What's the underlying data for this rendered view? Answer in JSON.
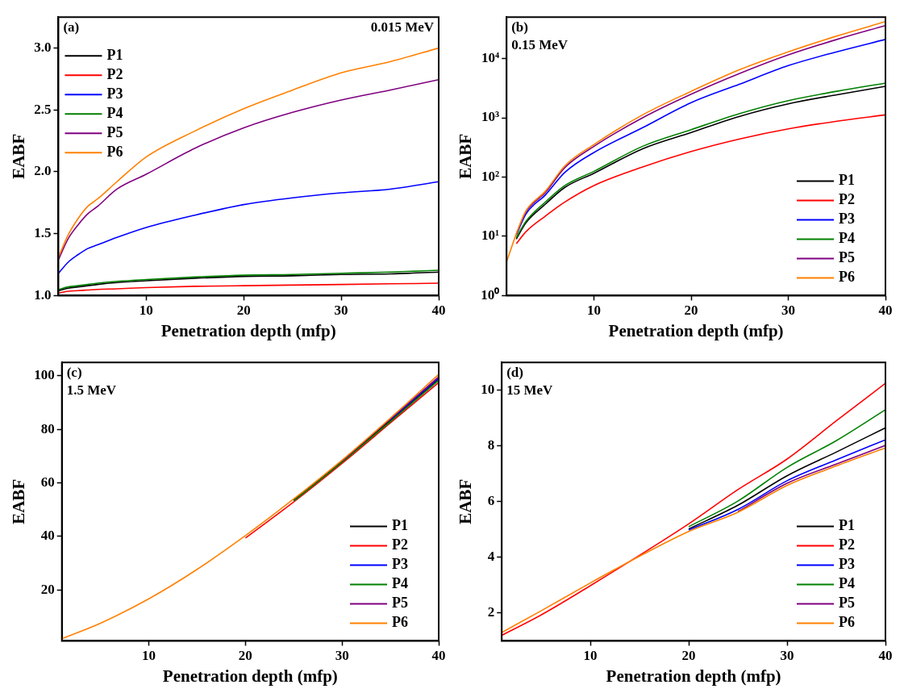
{
  "chart_data": [
    {
      "type": "line",
      "title": "(a)",
      "subtitle": "0.015 MeV",
      "xlabel": "Penetration depth (mfp)",
      "ylabel": "EABF",
      "x": [
        1,
        2,
        3,
        4,
        5,
        7,
        10,
        15,
        20,
        25,
        30,
        35,
        40
      ],
      "xlim": [
        1,
        40
      ],
      "xticks": [
        10,
        20,
        30,
        40
      ],
      "ylim": [
        1,
        3.25
      ],
      "yticks": [
        {
          "value": 1,
          "label": "1.0"
        },
        {
          "value": 1.5,
          "label": "1.5"
        },
        {
          "value": 2,
          "label": "2.0"
        },
        {
          "value": 2.5,
          "label": "2.5"
        },
        {
          "value": 3,
          "label": "3.0"
        }
      ],
      "grid": false,
      "legend": "top left",
      "marker": "none",
      "line_style": "solid",
      "series": [
        {
          "name": "P1",
          "color": "#000000",
          "values": [
            1.04,
            1.06,
            1.07,
            1.08,
            1.09,
            1.105,
            1.12,
            1.14,
            1.155,
            1.16,
            1.17,
            1.175,
            1.19
          ]
        },
        {
          "name": "P2",
          "color": "#ff0000",
          "values": [
            1.02,
            1.035,
            1.04,
            1.045,
            1.05,
            1.055,
            1.065,
            1.075,
            1.08,
            1.085,
            1.09,
            1.095,
            1.1
          ]
        },
        {
          "name": "P3",
          "color": "#0000ff",
          "values": [
            1.18,
            1.27,
            1.33,
            1.38,
            1.41,
            1.47,
            1.55,
            1.65,
            1.735,
            1.79,
            1.83,
            1.86,
            1.92
          ]
        },
        {
          "name": "P4",
          "color": "#008000",
          "values": [
            1.05,
            1.07,
            1.08,
            1.09,
            1.1,
            1.115,
            1.13,
            1.15,
            1.165,
            1.17,
            1.18,
            1.19,
            1.205
          ]
        },
        {
          "name": "P5",
          "color": "#800080",
          "values": [
            1.29,
            1.46,
            1.57,
            1.66,
            1.72,
            1.86,
            1.98,
            2.19,
            2.355,
            2.48,
            2.58,
            2.66,
            2.745
          ]
        },
        {
          "name": "P6",
          "color": "#ff8000",
          "values": [
            1.31,
            1.49,
            1.62,
            1.72,
            1.78,
            1.92,
            2.12,
            2.33,
            2.51,
            2.66,
            2.8,
            2.89,
            3.0
          ]
        }
      ]
    },
    {
      "type": "line",
      "title": "(b)",
      "subtitle": "0.15 MeV",
      "xlabel": "Penetration depth (mfp)",
      "ylabel": "EABF",
      "log": "y",
      "x": [
        1,
        2,
        3,
        5,
        7,
        10,
        15,
        20,
        25,
        30,
        35,
        40
      ],
      "xlim": [
        1,
        40
      ],
      "xticks": [
        10,
        20,
        30,
        40
      ],
      "ylim": [
        1,
        50000
      ],
      "yticks": [
        {
          "value": 1,
          "label": "10⁰"
        },
        {
          "value": 10,
          "label": "10¹"
        },
        {
          "value": 100,
          "label": "10²"
        },
        {
          "value": 1000,
          "label": "10³"
        },
        {
          "value": 10000,
          "label": "10⁴"
        }
      ],
      "grid": false,
      "legend": "bottom right",
      "marker": "none",
      "line_style": "solid",
      "series": [
        {
          "name": "P1",
          "color": "#000000",
          "values": [
            null,
            9,
            17,
            35,
            67,
            116,
            300,
            565,
            1060,
            1720,
            2450,
            3400
          ]
        },
        {
          "name": "P2",
          "color": "#ff0000",
          "values": [
            null,
            7.5,
            12,
            22,
            38,
            72,
            148,
            270,
            440,
            650,
            875,
            1120
          ]
        },
        {
          "name": "P3",
          "color": "#0000ff",
          "values": [
            null,
            10.5,
            24,
            50,
            120,
            260,
            680,
            1800,
            3700,
            7600,
            13000,
            21000
          ]
        },
        {
          "name": "P4",
          "color": "#008000",
          "values": [
            null,
            9.5,
            18,
            38,
            72,
            125,
            330,
            630,
            1180,
            1950,
            2800,
            3850
          ]
        },
        {
          "name": "P5",
          "color": "#800080",
          "values": [
            null,
            11,
            26,
            55,
            145,
            330,
            1000,
            2500,
            5600,
            11500,
            21000,
            36000
          ]
        },
        {
          "name": "P6",
          "color": "#ff8000",
          "values": [
            3.7,
            11,
            27,
            58,
            155,
            355,
            1120,
            2800,
            6500,
            13000,
            24000,
            42000
          ]
        }
      ]
    },
    {
      "type": "line",
      "title": "(c)",
      "subtitle": "1.5 MeV",
      "xlabel": "Penetration depth (mfp)",
      "ylabel": "EABF",
      "x": [
        1,
        5,
        10,
        15,
        20,
        25,
        30,
        35,
        40
      ],
      "xlim": [
        1,
        40
      ],
      "xticks": [
        10,
        20,
        30,
        40
      ],
      "ylim": [
        1,
        105
      ],
      "yticks": [
        20,
        40,
        60,
        80,
        100
      ],
      "grid": false,
      "legend": "bottom right",
      "marker": "none",
      "line_style": "solid",
      "series": [
        {
          "name": "P1",
          "color": "#000000",
          "values": [
            null,
            null,
            null,
            null,
            null,
            53.5,
            68,
            83.3,
            98.8
          ]
        },
        {
          "name": "P2",
          "color": "#ff0000",
          "values": [
            null,
            null,
            null,
            null,
            39.4,
            52.9,
            67.3,
            82.4,
            97.5
          ]
        },
        {
          "name": "P3",
          "color": "#0000ff",
          "values": [
            null,
            null,
            null,
            null,
            null,
            null,
            null,
            83.6,
            99.2
          ]
        },
        {
          "name": "P4",
          "color": "#008000",
          "values": [
            null,
            null,
            null,
            null,
            null,
            53.2,
            67.7,
            82.9,
            98.3
          ]
        },
        {
          "name": "P5",
          "color": "#800080",
          "values": [
            null,
            null,
            null,
            null,
            null,
            null,
            68.2,
            83.9,
            99.6
          ]
        },
        {
          "name": "P6",
          "color": "#ff8000",
          "values": [
            1.8,
            7.6,
            16.7,
            27.7,
            40.3,
            54,
            68.5,
            84.2,
            100.5
          ]
        }
      ]
    },
    {
      "type": "line",
      "title": "(d)",
      "subtitle": "15 MeV",
      "xlabel": "Penetration depth (mfp)",
      "ylabel": "EABF",
      "x": [
        1,
        5,
        10,
        14,
        20,
        25,
        30,
        35,
        40
      ],
      "xlim": [
        1,
        40
      ],
      "xticks": [
        10,
        20,
        30,
        40
      ],
      "ylim": [
        1,
        11
      ],
      "yticks": [
        2,
        4,
        6,
        8,
        10
      ],
      "grid": false,
      "legend": "bottom right",
      "marker": "none",
      "line_style": "solid",
      "series": [
        {
          "name": "P1",
          "color": "#000000",
          "values": [
            null,
            null,
            null,
            null,
            5.02,
            5.87,
            6.93,
            7.78,
            8.65
          ]
        },
        {
          "name": "P2",
          "color": "#ff0000",
          "values": [
            1.2,
            1.93,
            2.98,
            null,
            5.2,
            6.43,
            7.53,
            8.9,
            10.25
          ]
        },
        {
          "name": "P3",
          "color": "#0000ff",
          "values": [
            null,
            null,
            null,
            null,
            4.98,
            5.72,
            6.75,
            7.5,
            8.22
          ]
        },
        {
          "name": "P4",
          "color": "#008000",
          "values": [
            null,
            null,
            null,
            null,
            5.1,
            6.02,
            7.23,
            8.19,
            9.3
          ]
        },
        {
          "name": "P5",
          "color": "#800080",
          "values": [
            null,
            null,
            null,
            null,
            null,
            5.64,
            6.66,
            7.35,
            8.02
          ]
        },
        {
          "name": "P6",
          "color": "#ff8000",
          "values": [
            1.3,
            2.08,
            3.08,
            3.85,
            4.93,
            5.62,
            6.58,
            7.28,
            7.93
          ]
        }
      ]
    }
  ]
}
